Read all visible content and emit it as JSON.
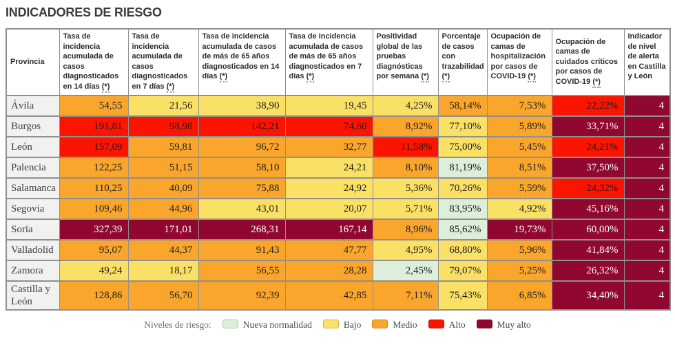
{
  "title": "INDICADORES DE RIESGO",
  "chart_data": {
    "type": "table",
    "title": "INDICADORES DE RIESGO",
    "columns": [
      {
        "label": "Provincia",
        "suffix": ""
      },
      {
        "label": "Tasa de incidencia acumulada de casos diagnosticados en 14 días",
        "suffix": "(*)"
      },
      {
        "label": "Tasa de incidencia acumulada de casos diagnosticados en 7 días",
        "suffix": "(*)"
      },
      {
        "label": "Tasa de incidencia acumulada de casos de más de 65 años diagnosticados en 14 días",
        "suffix": "(*)"
      },
      {
        "label": "Tasa de incidencia acumulada de casos de más de 65 años diagnosticados en 7 días",
        "suffix": "(*)"
      },
      {
        "label": "Positividad global de las pruebas diagnósticas por semana",
        "suffix": "(*)"
      },
      {
        "label": "Porcentaje de casos con trazabilidad",
        "suffix": "(*)"
      },
      {
        "label": "Ocupación de camas de hospitalización por casos de COVID-19",
        "suffix": "(*)"
      },
      {
        "label": "Ocupación de camas de cuidados críticos por casos de COVID-19",
        "suffix": "(*)"
      },
      {
        "label": "Indicador de nivel de alerta en Castilla y León",
        "suffix": ""
      }
    ],
    "risk_levels": {
      "nueva_normalidad": {
        "bg": "#DDEEDA",
        "text": "#1e1e1e"
      },
      "bajo": {
        "bg": "#FAE065",
        "text": "#1e1e1e"
      },
      "medio": {
        "bg": "#FAA62D",
        "text": "#1e1e1e"
      },
      "alto": {
        "bg": "#FB1500",
        "text": "#1b1b1b"
      },
      "muy_alto": {
        "bg": "#90082F",
        "text": "#FFFFFF"
      }
    },
    "rows": [
      {
        "province": "Ávila",
        "cells": [
          {
            "value": "54,55",
            "level": "medio"
          },
          {
            "value": "21,56",
            "level": "bajo"
          },
          {
            "value": "38,90",
            "level": "bajo"
          },
          {
            "value": "19,45",
            "level": "bajo"
          },
          {
            "value": "4,25%",
            "level": "bajo"
          },
          {
            "value": "58,14%",
            "level": "medio"
          },
          {
            "value": "7,53%",
            "level": "medio"
          },
          {
            "value": "22,22%",
            "level": "alto"
          },
          {
            "value": "4",
            "level": "muy_alto"
          }
        ]
      },
      {
        "province": "Burgos",
        "cells": [
          {
            "value": "191,81",
            "level": "alto"
          },
          {
            "value": "98,98",
            "level": "alto"
          },
          {
            "value": "142,21",
            "level": "alto"
          },
          {
            "value": "74,60",
            "level": "alto"
          },
          {
            "value": "8,92%",
            "level": "medio"
          },
          {
            "value": "77,10%",
            "level": "bajo"
          },
          {
            "value": "5,89%",
            "level": "medio"
          },
          {
            "value": "33,71%",
            "level": "muy_alto"
          },
          {
            "value": "4",
            "level": "muy_alto"
          }
        ]
      },
      {
        "province": "León",
        "cells": [
          {
            "value": "157,09",
            "level": "alto"
          },
          {
            "value": "59,81",
            "level": "medio"
          },
          {
            "value": "96,72",
            "level": "medio"
          },
          {
            "value": "32,77",
            "level": "medio"
          },
          {
            "value": "11,58%",
            "level": "alto"
          },
          {
            "value": "75,00%",
            "level": "bajo"
          },
          {
            "value": "5,45%",
            "level": "medio"
          },
          {
            "value": "24,21%",
            "level": "alto"
          },
          {
            "value": "4",
            "level": "muy_alto"
          }
        ]
      },
      {
        "province": "Palencia",
        "cells": [
          {
            "value": "122,25",
            "level": "medio"
          },
          {
            "value": "51,15",
            "level": "medio"
          },
          {
            "value": "58,10",
            "level": "medio"
          },
          {
            "value": "24,21",
            "level": "bajo"
          },
          {
            "value": "8,10%",
            "level": "medio"
          },
          {
            "value": "81,19%",
            "level": "nueva_normalidad"
          },
          {
            "value": "8,51%",
            "level": "medio"
          },
          {
            "value": "37,50%",
            "level": "muy_alto"
          },
          {
            "value": "4",
            "level": "muy_alto"
          }
        ]
      },
      {
        "province": "Salamanca",
        "cells": [
          {
            "value": "110,25",
            "level": "medio"
          },
          {
            "value": "40,09",
            "level": "medio"
          },
          {
            "value": "75,88",
            "level": "medio"
          },
          {
            "value": "24,92",
            "level": "bajo"
          },
          {
            "value": "5,36%",
            "level": "bajo"
          },
          {
            "value": "70,26%",
            "level": "bajo"
          },
          {
            "value": "5,59%",
            "level": "medio"
          },
          {
            "value": "24,32%",
            "level": "alto"
          },
          {
            "value": "4",
            "level": "muy_alto"
          }
        ]
      },
      {
        "province": "Segovia",
        "cells": [
          {
            "value": "109,46",
            "level": "medio"
          },
          {
            "value": "44,96",
            "level": "medio"
          },
          {
            "value": "43,01",
            "level": "bajo"
          },
          {
            "value": "20,07",
            "level": "bajo"
          },
          {
            "value": "5,71%",
            "level": "bajo"
          },
          {
            "value": "83,95%",
            "level": "nueva_normalidad"
          },
          {
            "value": "4,92%",
            "level": "bajo"
          },
          {
            "value": "45,16%",
            "level": "muy_alto"
          },
          {
            "value": "4",
            "level": "muy_alto"
          }
        ]
      },
      {
        "province": "Soria",
        "cells": [
          {
            "value": "327,39",
            "level": "muy_alto"
          },
          {
            "value": "171,01",
            "level": "muy_alto"
          },
          {
            "value": "268,31",
            "level": "muy_alto"
          },
          {
            "value": "167,14",
            "level": "muy_alto"
          },
          {
            "value": "8,96%",
            "level": "medio"
          },
          {
            "value": "85,62%",
            "level": "nueva_normalidad"
          },
          {
            "value": "19,73%",
            "level": "muy_alto"
          },
          {
            "value": "60,00%",
            "level": "muy_alto"
          },
          {
            "value": "4",
            "level": "muy_alto"
          }
        ]
      },
      {
        "province": "Valladolid",
        "cells": [
          {
            "value": "95,07",
            "level": "medio"
          },
          {
            "value": "44,37",
            "level": "medio"
          },
          {
            "value": "91,43",
            "level": "medio"
          },
          {
            "value": "47,77",
            "level": "medio"
          },
          {
            "value": "4,95%",
            "level": "bajo"
          },
          {
            "value": "68,80%",
            "level": "bajo"
          },
          {
            "value": "5,96%",
            "level": "medio"
          },
          {
            "value": "41,84%",
            "level": "muy_alto"
          },
          {
            "value": "4",
            "level": "muy_alto"
          }
        ]
      },
      {
        "province": "Zamora",
        "cells": [
          {
            "value": "49,24",
            "level": "bajo"
          },
          {
            "value": "18,17",
            "level": "bajo"
          },
          {
            "value": "56,55",
            "level": "medio"
          },
          {
            "value": "28,28",
            "level": "medio"
          },
          {
            "value": "2,45%",
            "level": "nueva_normalidad"
          },
          {
            "value": "79,07%",
            "level": "bajo"
          },
          {
            "value": "5,25%",
            "level": "medio"
          },
          {
            "value": "26,32%",
            "level": "muy_alto"
          },
          {
            "value": "4",
            "level": "muy_alto"
          }
        ]
      },
      {
        "province": "Castilla y León",
        "cells": [
          {
            "value": "128,86",
            "level": "medio"
          },
          {
            "value": "56,70",
            "level": "medio"
          },
          {
            "value": "92,39",
            "level": "medio"
          },
          {
            "value": "42,85",
            "level": "medio"
          },
          {
            "value": "7,11%",
            "level": "medio"
          },
          {
            "value": "75,43%",
            "level": "bajo"
          },
          {
            "value": "6,85%",
            "level": "medio"
          },
          {
            "value": "34,40%",
            "level": "muy_alto"
          },
          {
            "value": "4",
            "level": "muy_alto"
          }
        ]
      }
    ],
    "legend": {
      "label": "Niveles de riesgo:",
      "items": [
        {
          "label": "Nueva normalidad",
          "level": "nueva_normalidad",
          "color": "#DDEEDA"
        },
        {
          "label": "Bajo",
          "level": "bajo",
          "color": "#FAE065"
        },
        {
          "label": "Medio",
          "level": "medio",
          "color": "#FAA62D"
        },
        {
          "label": "Alto",
          "level": "alto",
          "color": "#FB1500"
        },
        {
          "label": "Muy alto",
          "level": "muy_alto",
          "color": "#90082F"
        }
      ]
    }
  }
}
